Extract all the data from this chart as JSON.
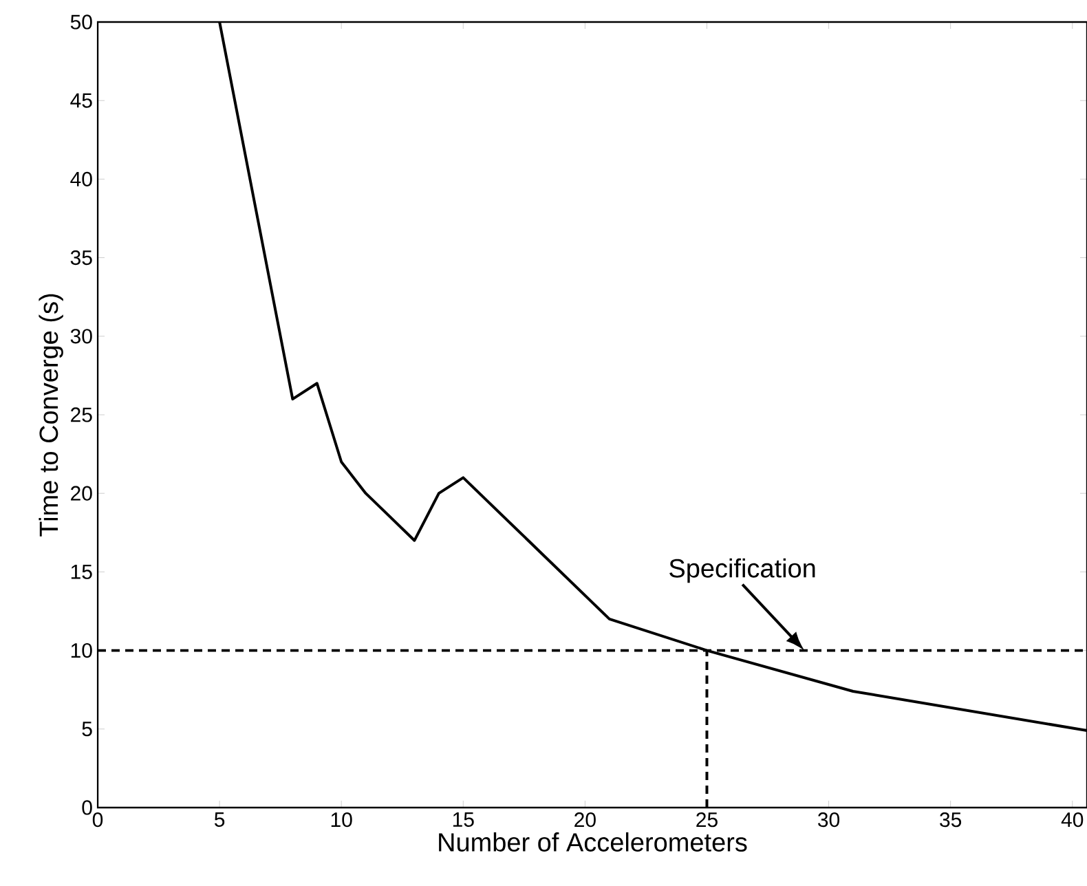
{
  "chart_data": {
    "type": "line",
    "xlabel": "Number of Accelerometers",
    "ylabel": "Time to Converge (s)",
    "xlim": [
      0,
      40.6
    ],
    "ylim": [
      0,
      50
    ],
    "xticks": [
      0,
      5,
      10,
      15,
      20,
      25,
      30,
      35,
      40
    ],
    "yticks": [
      0,
      5,
      10,
      15,
      20,
      25,
      30,
      35,
      40,
      45,
      50
    ],
    "grid": false,
    "series": [
      {
        "color": "#000000",
        "line_style": "solid",
        "x": [
          5,
          8,
          9,
          10,
          11,
          12,
          13,
          14,
          15,
          21,
          25,
          31,
          40.6
        ],
        "values": [
          50,
          26,
          27,
          22,
          20,
          18.5,
          17,
          20,
          21,
          12,
          10,
          7.4,
          4.9
        ]
      },
      {
        "color": "#000000",
        "line_style": "dashed",
        "x": [
          25,
          25
        ],
        "values": [
          0,
          10
        ]
      }
    ],
    "ref_lines": [
      {
        "axis": "y",
        "value": 10,
        "color": "#000000",
        "line_style": "dashed"
      }
    ],
    "annotations": [
      {
        "text": "Specification",
        "x": 29,
        "y": 10
      }
    ]
  }
}
